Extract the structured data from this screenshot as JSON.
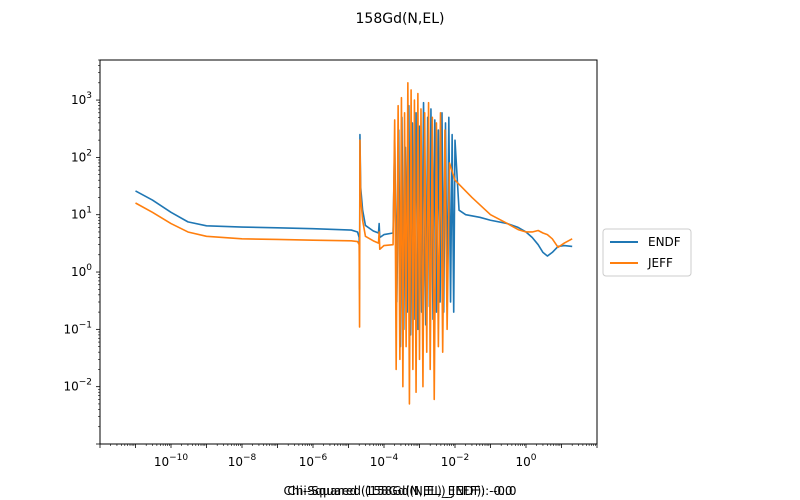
{
  "chart_data": {
    "type": "line",
    "title": "158Gd(N,EL)",
    "xscale": "log",
    "yscale": "log",
    "xlim": [
      1e-12,
      100.0
    ],
    "ylim": [
      0.001,
      5000
    ],
    "x_ticks": [
      {
        "value": 1e-10,
        "label": "10^-10"
      },
      {
        "value": 1e-08,
        "label": "10^-8"
      },
      {
        "value": 1e-06,
        "label": "10^-6"
      },
      {
        "value": 0.0001,
        "label": "10^-4"
      },
      {
        "value": 0.01,
        "label": "10^-2"
      },
      {
        "value": 1,
        "label": "10^0"
      }
    ],
    "y_ticks": [
      {
        "value": 0.01,
        "label": "10^-2"
      },
      {
        "value": 0.1,
        "label": "10^-1"
      },
      {
        "value": 1,
        "label": "10^0"
      },
      {
        "value": 10,
        "label": "10^1"
      },
      {
        "value": 100,
        "label": "10^2"
      },
      {
        "value": 1000,
        "label": "10^3"
      }
    ],
    "legend": {
      "placement": "right-outside"
    },
    "grid": false,
    "series": [
      {
        "name": "ENDF",
        "color": "#1f77b4",
        "x": [
          1e-11,
          3e-11,
          1e-10,
          3e-10,
          1e-09,
          1e-08,
          1e-07,
          1e-06,
          1.2e-05,
          1.8e-05,
          2e-05,
          2.05e-05,
          2.1e-05,
          2.2e-05,
          2.5e-05,
          3e-05,
          5e-05,
          7e-05,
          7.3e-05,
          7.6e-05,
          0.0001,
          0.00018,
          0.0002,
          0.00023,
          0.00026,
          0.00029,
          0.00032,
          0.00036,
          0.0004,
          0.00045,
          0.0005,
          0.00056,
          0.00063,
          0.0007,
          0.0008,
          0.0009,
          0.001,
          0.00115,
          0.0013,
          0.0015,
          0.0017,
          0.0019,
          0.0021,
          0.0024,
          0.0027,
          0.003,
          0.0034,
          0.0038,
          0.0043,
          0.0048,
          0.0054,
          0.006,
          0.0067,
          0.0075,
          0.0083,
          0.0092,
          0.01,
          0.013,
          0.02,
          0.05,
          0.1,
          0.3,
          0.6,
          1,
          1.5,
          2.2,
          3,
          4,
          5.5,
          8,
          12,
          20
        ],
        "y": [
          26,
          18,
          11,
          7.5,
          6.4,
          6.1,
          5.9,
          5.7,
          5.4,
          5.0,
          4.0,
          0.5,
          250,
          30,
          12,
          6.5,
          5.2,
          4.8,
          7.0,
          4.0,
          4.5,
          4.8,
          200,
          0.3,
          300,
          0.05,
          500,
          0.1,
          150,
          0.2,
          800,
          0.08,
          400,
          0.15,
          600,
          0.1,
          350,
          0.2,
          900,
          0.12,
          500,
          0.25,
          700,
          0.15,
          450,
          0.2,
          300,
          0.3,
          600,
          0.2,
          400,
          0.25,
          500,
          0.3,
          250,
          0.2,
          200,
          12,
          10,
          9,
          8,
          7,
          6,
          5,
          4,
          3,
          2.2,
          1.9,
          2.2,
          2.8,
          2.9,
          2.8
        ]
      },
      {
        "name": "JEFF",
        "color": "#ff7f0e",
        "x": [
          1e-11,
          3e-11,
          1e-10,
          3e-10,
          1e-09,
          1e-08,
          1e-07,
          1e-06,
          1.2e-05,
          1.8e-05,
          2e-05,
          2.05e-05,
          2.1e-05,
          2.2e-05,
          2.5e-05,
          3e-05,
          5e-05,
          7e-05,
          7.3e-05,
          7.6e-05,
          0.0001,
          0.00018,
          0.0002,
          0.00022,
          0.00025,
          0.00028,
          0.00031,
          0.00034,
          0.00038,
          0.00042,
          0.00047,
          0.00052,
          0.00058,
          0.00065,
          0.00072,
          0.0008,
          0.0009,
          0.001,
          0.0011,
          0.00125,
          0.0014,
          0.0016,
          0.0018,
          0.002,
          0.0023,
          0.0026,
          0.003,
          0.0034,
          0.0039,
          0.0045,
          0.0052,
          0.006,
          0.007,
          0.01,
          0.03,
          0.1,
          0.3,
          0.6,
          1,
          1.5,
          2.2,
          3,
          4,
          5.5,
          8,
          12,
          20
        ],
        "y": [
          16,
          11,
          7,
          5,
          4.2,
          3.8,
          3.7,
          3.6,
          3.5,
          3.4,
          3.0,
          0.11,
          200,
          20,
          8,
          4.2,
          3.5,
          3.2,
          5.0,
          2.5,
          2.9,
          3.0,
          450,
          0.02,
          800,
          0.03,
          1100,
          0.01,
          600,
          0.05,
          2000,
          0.005,
          1500,
          0.02,
          1000,
          0.008,
          1300,
          0.03,
          700,
          0.01,
          600,
          0.04,
          900,
          0.02,
          500,
          0.006,
          400,
          0.05,
          600,
          0.04,
          300,
          0.1,
          80,
          40,
          20,
          10,
          7,
          5.5,
          5,
          5,
          5.3,
          4.8,
          4.5,
          3.8,
          2.7,
          3.2,
          3.8
        ]
      }
    ]
  },
  "footer": {
    "text_a": "Chi-Squared (158Gd(N,EL)_ENDF): -0.0",
    "text_b": "Chi-Squared (158Gd(N,EL)_JEFF): -0.0"
  }
}
